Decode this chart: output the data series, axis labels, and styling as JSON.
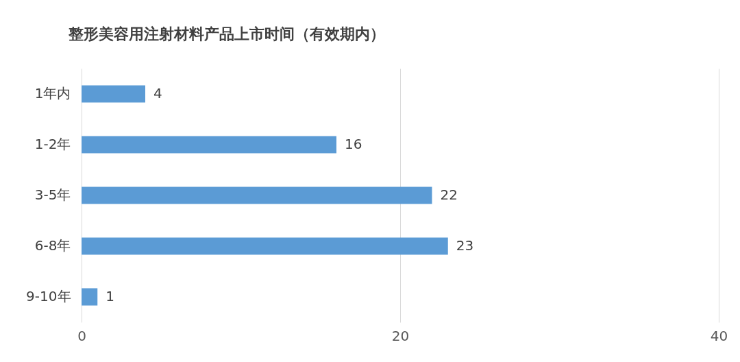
{
  "chart_data": {
    "type": "bar",
    "orientation": "horizontal",
    "title": "整形美容用注射材料产品上市时间（有效期内）",
    "categories": [
      "1年内",
      "1-2年",
      "3-5年",
      "6-8年",
      "9-10年"
    ],
    "values": [
      4,
      16,
      22,
      23,
      1
    ],
    "color": "#5b9bd5",
    "xlim": [
      0,
      40
    ],
    "xticks": [
      0,
      20,
      40
    ],
    "grid": "x",
    "data_labels": true
  }
}
